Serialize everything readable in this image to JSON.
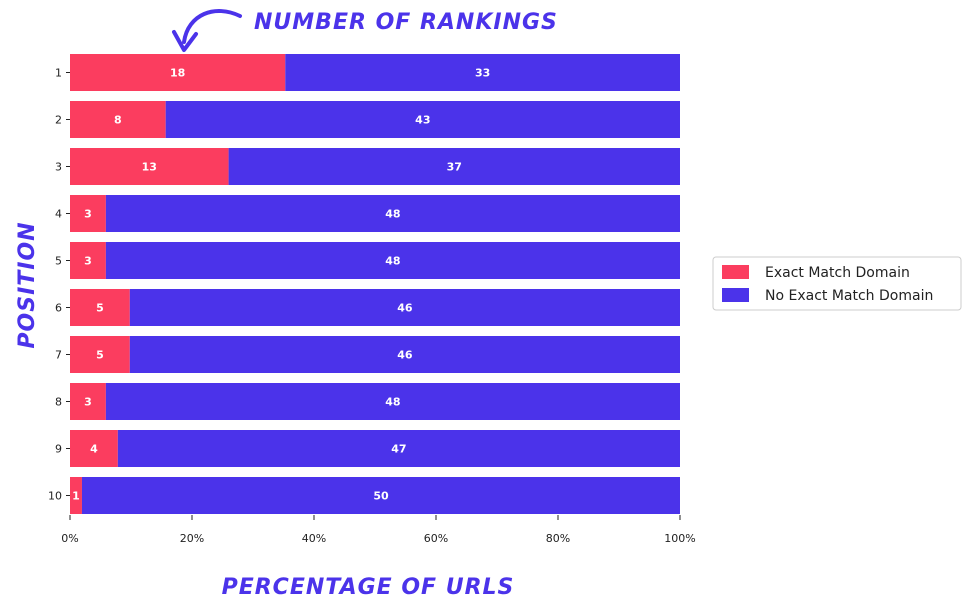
{
  "chart_data": {
    "type": "bar",
    "orientation": "horizontal",
    "stacked": true,
    "normalized": true,
    "annotation": "NUMBER OF RANKINGS",
    "xlabel": "PERCENTAGE OF URLS",
    "ylabel": "POSITION",
    "categories": [
      "1",
      "2",
      "3",
      "4",
      "5",
      "6",
      "7",
      "8",
      "9",
      "10"
    ],
    "series": [
      {
        "name": "Exact Match Domain",
        "color": "#fb3d5f",
        "values": [
          18,
          8,
          13,
          3,
          3,
          5,
          5,
          3,
          4,
          1
        ]
      },
      {
        "name": "No Exact Match Domain",
        "color": "#4b33ea",
        "values": [
          33,
          43,
          37,
          48,
          48,
          46,
          46,
          48,
          47,
          50
        ]
      }
    ],
    "xlim": [
      0,
      100
    ],
    "xticks": [
      "0%",
      "20%",
      "40%",
      "60%",
      "80%",
      "100%"
    ],
    "grid": false,
    "legend_position": "right"
  }
}
